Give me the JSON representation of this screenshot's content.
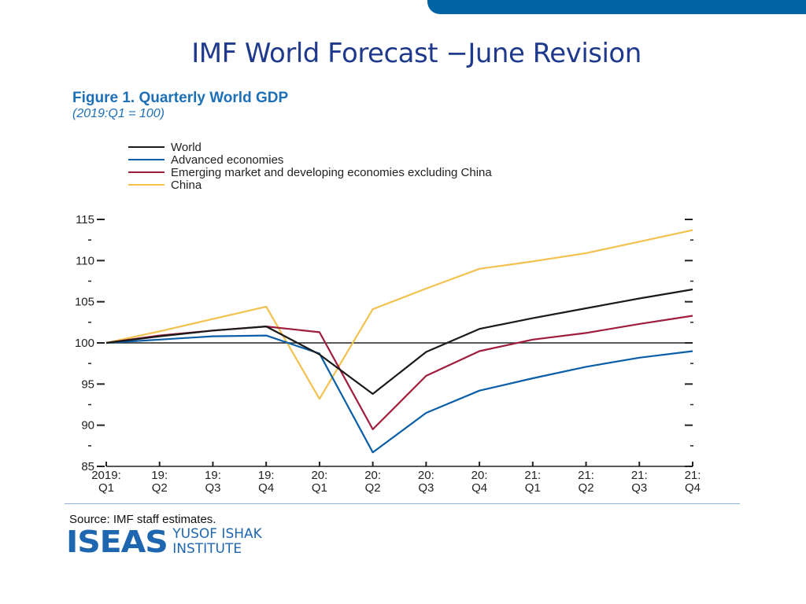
{
  "slide": {
    "title": "IMF World Forecast −June Revision",
    "source": "Source: IMF staff estimates.",
    "logo": {
      "mark": "ISEAS",
      "line1": "YUSOF ISHAK",
      "line2": "INSTITUTE"
    },
    "brand_color": "#0063a3"
  },
  "chart_data": {
    "type": "line",
    "title": "Figure 1. Quarterly World GDP",
    "subtitle": "(2019:Q1 = 100)",
    "categories": [
      [
        "2019:",
        "Q1"
      ],
      [
        "19:",
        "Q2"
      ],
      [
        "19:",
        "Q3"
      ],
      [
        "19:",
        "Q4"
      ],
      [
        "20:",
        "Q1"
      ],
      [
        "20:",
        "Q2"
      ],
      [
        "20:",
        "Q3"
      ],
      [
        "20:",
        "Q4"
      ],
      [
        "21:",
        "Q1"
      ],
      [
        "21:",
        "Q2"
      ],
      [
        "21:",
        "Q3"
      ],
      [
        "21:",
        "Q4"
      ]
    ],
    "ylim": [
      85,
      115
    ],
    "yticks": [
      85,
      90,
      95,
      100,
      105,
      110,
      115
    ],
    "reference_line": 100,
    "legend_position": "top-left",
    "series": [
      {
        "name": "World",
        "color": "#1a1a1a",
        "values": [
          100,
          100.8,
          101.5,
          102.0,
          98.6,
          93.8,
          98.9,
          101.7,
          103.0,
          104.2,
          105.4,
          106.5
        ]
      },
      {
        "name": "Advanced economies",
        "color": "#0a5ea8",
        "values": [
          100,
          100.4,
          100.8,
          100.9,
          98.7,
          86.7,
          91.5,
          94.2,
          95.7,
          97.1,
          98.2,
          99.0
        ]
      },
      {
        "name": "Emerging market and developing economies excluding China",
        "color": "#a01c3c",
        "values": [
          100,
          100.9,
          101.5,
          102.0,
          101.3,
          89.5,
          96.0,
          99.0,
          100.4,
          101.2,
          102.3,
          103.3
        ]
      },
      {
        "name": "China",
        "color": "#f2c14e",
        "values": [
          100,
          101.4,
          102.9,
          104.4,
          93.2,
          104.1,
          106.6,
          109.0,
          109.9,
          110.9,
          112.3,
          113.7
        ]
      }
    ]
  }
}
